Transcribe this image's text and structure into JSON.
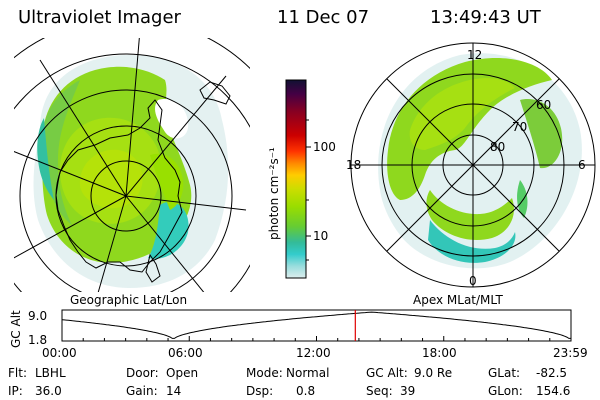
{
  "header": {
    "title": "Ultraviolet Imager",
    "date": "11 Dec 07",
    "time": "13:49:43 UT"
  },
  "left_map": {
    "label": "Geographic Lat/Lon"
  },
  "right_map": {
    "label": "Apex MLat/MLT",
    "mlt_labels": {
      "top": "12",
      "right": "6",
      "bottom": "0",
      "left": "18"
    },
    "lat_labels": [
      "60",
      "70",
      "80"
    ]
  },
  "colorbar": {
    "unit_label": "photon cm⁻²s⁻¹",
    "ticks": [
      "100",
      "10"
    ],
    "colors": [
      "#111133",
      "#440044",
      "#880022",
      "#cc0000",
      "#ff3300",
      "#ff8800",
      "#ffcc00",
      "#ccdd00",
      "#99dd00",
      "#66cc33",
      "#33bb99",
      "#33cccc",
      "#99dddd",
      "#ddeeee"
    ]
  },
  "alt_strip": {
    "axis_label": "GC Alt",
    "y_labels": [
      "9.0",
      "1.8"
    ],
    "x_labels": [
      "00:00",
      "06:00",
      "12:00",
      "18:00",
      "23:59"
    ],
    "marker_hour": 13.83,
    "marker_color": "#e00000"
  },
  "info": {
    "row1": [
      {
        "label": "Flt:",
        "value": "LBHL"
      },
      {
        "label": "Door:",
        "value": "Open"
      },
      {
        "label": "Mode:",
        "value": "Normal"
      },
      {
        "label": "GC Alt:",
        "value": "9.0 Re"
      },
      {
        "label": "GLat:",
        "value": "-82.5"
      }
    ],
    "row2": [
      {
        "label": "IP:",
        "value": "36.0"
      },
      {
        "label": "Gain:",
        "value": "14"
      },
      {
        "label": "Dsp:",
        "value": "0.8"
      },
      {
        "label": "Seq:",
        "value": "39"
      },
      {
        "label": "GLon:",
        "value": "154.6"
      }
    ]
  }
}
